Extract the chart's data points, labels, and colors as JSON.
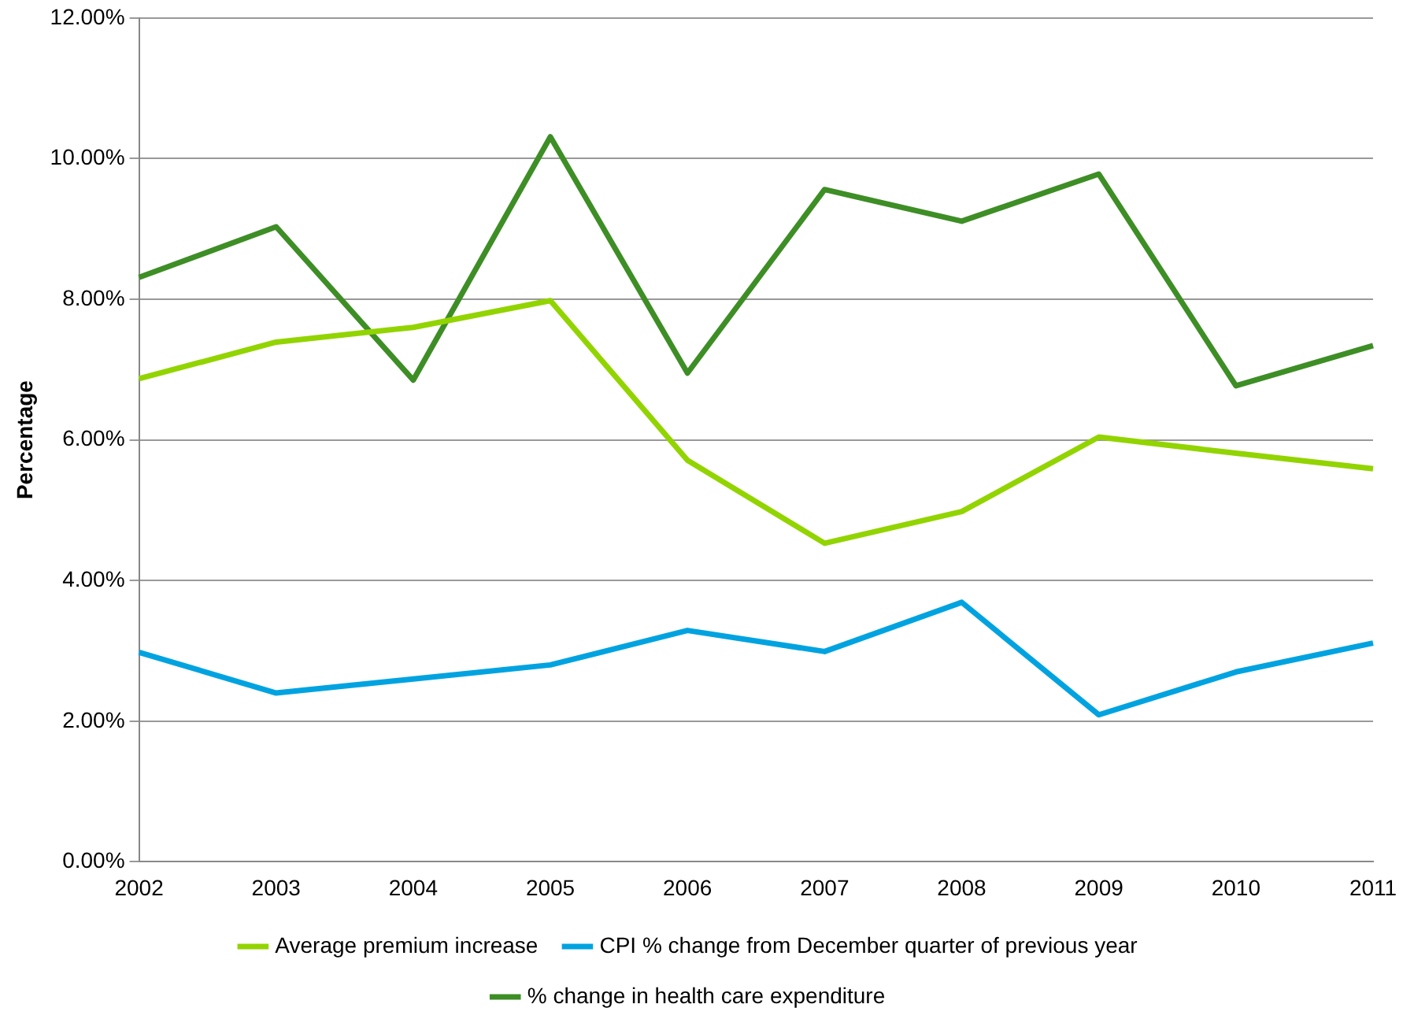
{
  "chart_data": {
    "type": "line",
    "ylabel": "Percentage",
    "categories": [
      "2002",
      "2003",
      "2004",
      "2005",
      "2006",
      "2007",
      "2008",
      "2009",
      "2010",
      "2011"
    ],
    "series": [
      {
        "name": "Average premium increase",
        "color": "#92d400",
        "values": [
          6.87,
          7.39,
          7.6,
          7.98,
          5.71,
          4.53,
          4.98,
          6.04,
          5.81,
          5.59
        ]
      },
      {
        "name": "CPI % change from December quarter of previous year",
        "color": "#00a3e0",
        "values": [
          2.98,
          2.4,
          2.6,
          2.8,
          3.29,
          2.99,
          3.69,
          2.09,
          2.7,
          3.11
        ]
      },
      {
        "name": "% change in health care expenditure",
        "color": "#3e8e26",
        "values": [
          8.31,
          9.03,
          6.85,
          10.31,
          6.95,
          9.56,
          9.11,
          9.78,
          6.77,
          7.34
        ]
      }
    ],
    "ylim": [
      0,
      12
    ],
    "yticks": [
      {
        "value": 0,
        "label": "0.00%"
      },
      {
        "value": 2,
        "label": "2.00%"
      },
      {
        "value": 4,
        "label": "4.00%"
      },
      {
        "value": 6,
        "label": "6.00%"
      },
      {
        "value": 8,
        "label": "8.00%"
      },
      {
        "value": 10,
        "label": "10.00%"
      },
      {
        "value": 12,
        "label": "12.00%"
      }
    ],
    "grid": "y",
    "legend": "bottom",
    "marker": "none",
    "line_style": "solid"
  }
}
